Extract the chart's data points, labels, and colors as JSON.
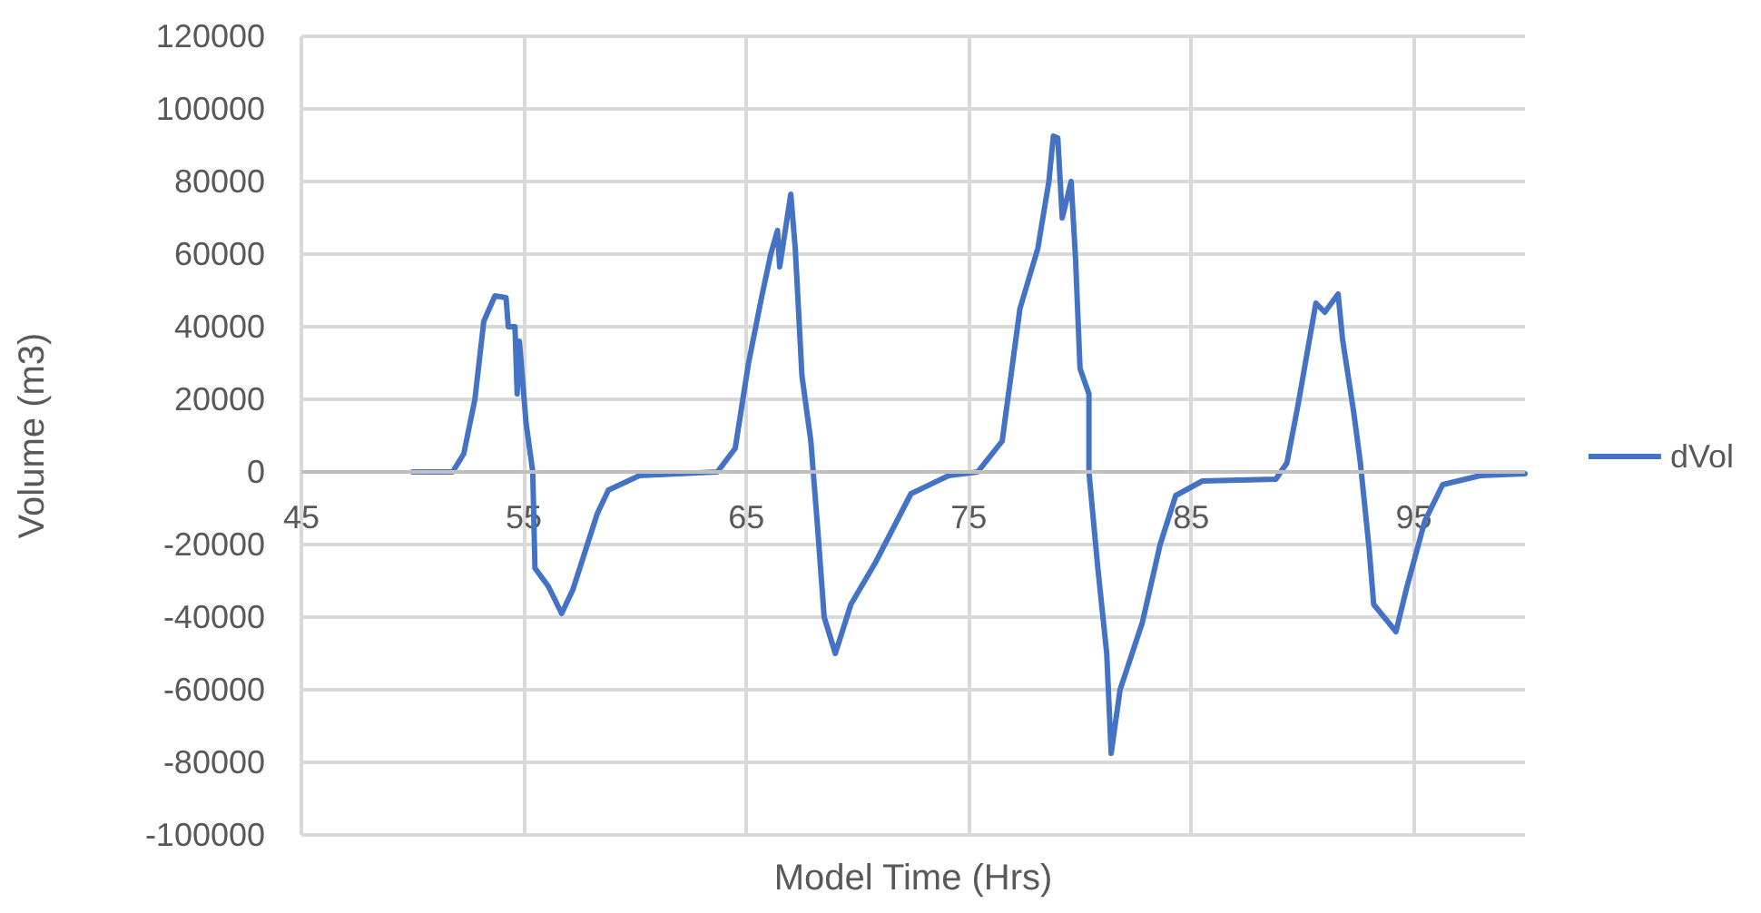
{
  "chart_data": {
    "type": "line",
    "xlabel": "Model Time (Hrs)",
    "ylabel": "Volume (m3)",
    "xlim": [
      45,
      100
    ],
    "xticks": [
      45,
      55,
      65,
      75,
      85,
      95
    ],
    "ylim": [
      -100000,
      120000
    ],
    "yticks": [
      -100000,
      -80000,
      -60000,
      -40000,
      -20000,
      0,
      20000,
      40000,
      60000,
      80000,
      100000,
      120000
    ],
    "grid": true,
    "legend": "right",
    "marker": "none",
    "line_style": "solid",
    "series": [
      {
        "name": "dVol",
        "color": "#4472c4",
        "x": [
          50,
          51.8,
          52.3,
          52.8,
          53.2,
          53.7,
          54.2,
          54.3,
          54.6,
          54.7,
          54.8,
          55.1,
          55.4,
          55.5,
          56.1,
          56.7,
          57.2,
          58.3,
          58.8,
          60.2,
          63.7,
          64.5,
          65.1,
          65.7,
          66.1,
          66.4,
          66.5,
          67.0,
          67.2,
          67.3,
          67.5,
          67.9,
          68.2,
          68.5,
          69.0,
          69.7,
          70.8,
          72.4,
          74.1,
          75.4,
          76.5,
          77.3,
          78.1,
          78.6,
          78.8,
          79.0,
          79.2,
          79.6,
          79.8,
          80.0,
          80.4,
          80.4,
          80.8,
          81.2,
          81.4,
          81.8,
          82.8,
          83.6,
          84.3,
          85.5,
          88.8,
          89.3,
          89.8,
          90.6,
          91.0,
          91.6,
          91.8,
          92.3,
          92.6,
          93.0,
          93.2,
          94.2,
          94.7,
          95.5,
          96.3,
          98.0,
          100
        ],
        "values": [
          0,
          0,
          5000,
          20000,
          41500,
          48500,
          48000,
          40000,
          40000,
          21500,
          36000,
          13500,
          0,
          -26500,
          -31500,
          -39000,
          -32500,
          -11500,
          -5000,
          -1000,
          0,
          6500,
          30000,
          48500,
          60000,
          66500,
          56500,
          76500,
          61500,
          50000,
          26500,
          8500,
          -15000,
          -40000,
          -50000,
          -36500,
          -25000,
          -6000,
          -1000,
          0,
          8500,
          45000,
          61500,
          80000,
          92500,
          92000,
          70000,
          80000,
          58500,
          28500,
          21500,
          0,
          -26500,
          -50000,
          -77500,
          -60000,
          -41500,
          -20000,
          -6500,
          -2500,
          -2000,
          2500,
          18500,
          46500,
          44000,
          49000,
          36500,
          16500,
          2500,
          -21500,
          -36500,
          -44000,
          -31500,
          -13500,
          -3500,
          -1000,
          -500
        ]
      }
    ]
  }
}
